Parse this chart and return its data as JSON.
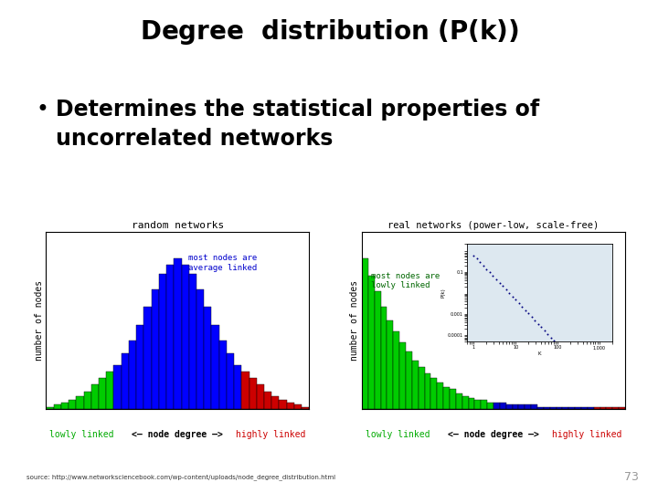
{
  "title": "Degree  distribution (P(k))",
  "title_italic_part": "(P(k))",
  "bullet": "Determines the statistical properties of\nuncorrelated networks",
  "slide_number": "73",
  "source_text": "source: http://www.networksciencebook.com/wp-content/uploads/node_degree_distribution.html",
  "left_plot": {
    "title": "random networks",
    "xlabel_left": "lowly linked",
    "xlabel_center": "<– node degree –>",
    "xlabel_right": "highly linked",
    "ylabel": "number of nodes",
    "annotation": "most nodes are\naverage linked",
    "annotation_color": "#0000cc",
    "green_bars": [
      1,
      2,
      3,
      4,
      6,
      8,
      11,
      14,
      17
    ],
    "blue_bars": [
      20,
      25,
      31,
      38,
      46,
      54,
      61,
      65,
      68,
      65,
      61,
      54,
      46,
      38,
      31,
      25,
      20
    ],
    "red_bars": [
      17,
      14,
      11,
      8,
      6,
      4,
      3,
      2,
      1
    ]
  },
  "right_plot": {
    "title": "real networks (power-low, scale-free)",
    "xlabel_left": "lowly linked",
    "xlabel_center": "<– node degree –>",
    "xlabel_right": "highly linked",
    "ylabel": "number of nodes",
    "annotation": "most nodes are\nlowly linked",
    "annotation_color": "#006600",
    "green_bars": [
      68,
      60,
      53,
      46,
      40,
      35,
      30,
      26,
      22,
      19,
      16,
      14,
      12,
      10,
      9,
      7,
      6,
      5,
      4,
      4,
      3
    ],
    "blue_bars": [
      3,
      3,
      2,
      2,
      2,
      2,
      2,
      1,
      1,
      1,
      1,
      1,
      1,
      1,
      1,
      1
    ],
    "red_bars": [
      1,
      1,
      1,
      1,
      1
    ],
    "inset_bg": "#dde8f0",
    "inset_line_color": "#000080"
  },
  "bg_color": "#ffffff",
  "title_fontsize": 20,
  "bullet_fontsize": 17,
  "plot_title_fontsize": 8,
  "axis_label_fontsize": 7,
  "xlabel_fontsize": 7,
  "source_fontsize": 5
}
